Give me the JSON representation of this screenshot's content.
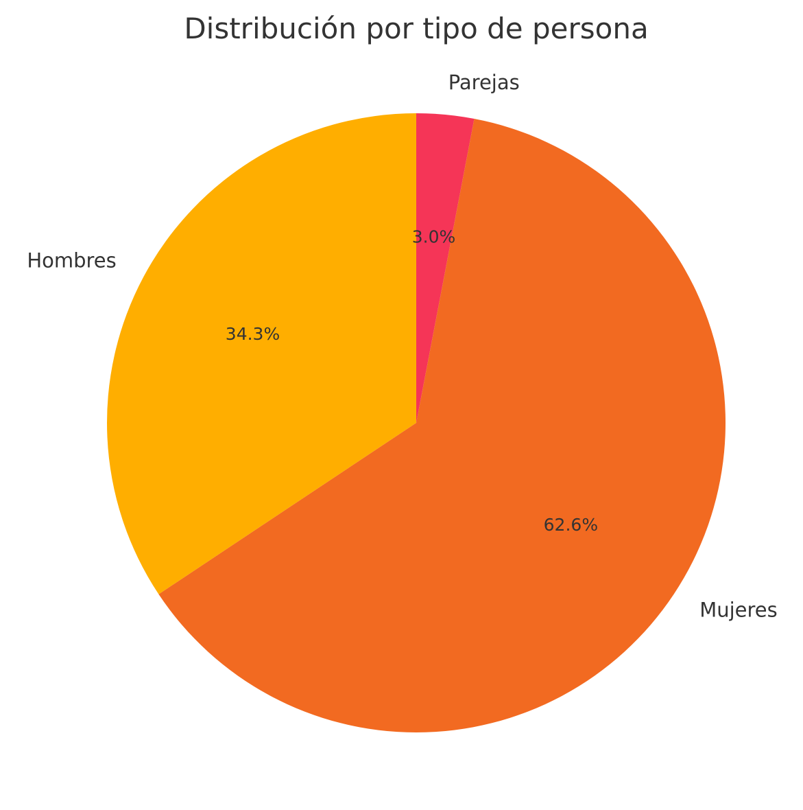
{
  "chart_data": {
    "type": "pie",
    "title": "Distribución por tipo de persona",
    "slices": [
      {
        "label": "Parejas",
        "value": 3.0,
        "pct_label": "3.0%",
        "color": "#f53557"
      },
      {
        "label": "Mujeres",
        "value": 62.6,
        "pct_label": "62.6%",
        "color": "#f26a21"
      },
      {
        "label": "Hombres",
        "value": 34.3,
        "pct_label": "34.3%",
        "color": "#ffae00"
      }
    ],
    "start_angle": 90,
    "direction": "clockwise",
    "legend": "none"
  }
}
